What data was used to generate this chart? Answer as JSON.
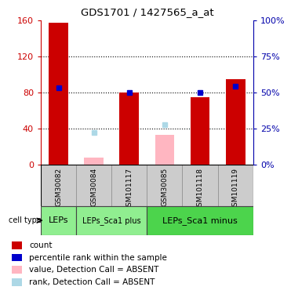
{
  "title": "GDS1701 / 1427565_a_at",
  "samples": [
    "GSM30082",
    "GSM30084",
    "GSM101117",
    "GSM30085",
    "GSM101118",
    "GSM101119"
  ],
  "red_bars": [
    158,
    0,
    80,
    0,
    75,
    95
  ],
  "pink_bars": [
    0,
    8,
    0,
    33,
    0,
    0
  ],
  "blue_squares": [
    85,
    0,
    80,
    0,
    80,
    87
  ],
  "light_blue_squares": [
    0,
    36,
    0,
    44,
    0,
    0
  ],
  "cell_info": [
    {
      "label": "LEPs",
      "start": 0,
      "end": 1,
      "color": "#90EE90",
      "fontsize": 8
    },
    {
      "label": "LEPs_Sca1 plus",
      "start": 1,
      "end": 3,
      "color": "#90EE90",
      "fontsize": 7
    },
    {
      "label": "LEPs_Sca1 minus",
      "start": 3,
      "end": 6,
      "color": "#4CD44C",
      "fontsize": 8
    }
  ],
  "ylim_left": [
    0,
    160
  ],
  "ylim_right": [
    0,
    100
  ],
  "yticks_left": [
    0,
    40,
    80,
    120,
    160
  ],
  "yticks_right": [
    0,
    25,
    50,
    75,
    100
  ],
  "ytick_labels_left": [
    "0",
    "40",
    "80",
    "120",
    "160"
  ],
  "ytick_labels_right": [
    "0%",
    "25%",
    "50%",
    "75%",
    "100%"
  ],
  "legend_colors": [
    "#CC0000",
    "#0000CC",
    "#FFB6C1",
    "#ADD8E6"
  ],
  "legend_labels": [
    "count",
    "percentile rank within the sample",
    "value, Detection Call = ABSENT",
    "rank, Detection Call = ABSENT"
  ],
  "red_color": "#CC0000",
  "pink_color": "#FFB6C1",
  "blue_color": "#0000CC",
  "lightblue_color": "#ADD8E6",
  "label_bg_color": "#CCCCCC",
  "bar_width": 0.55
}
